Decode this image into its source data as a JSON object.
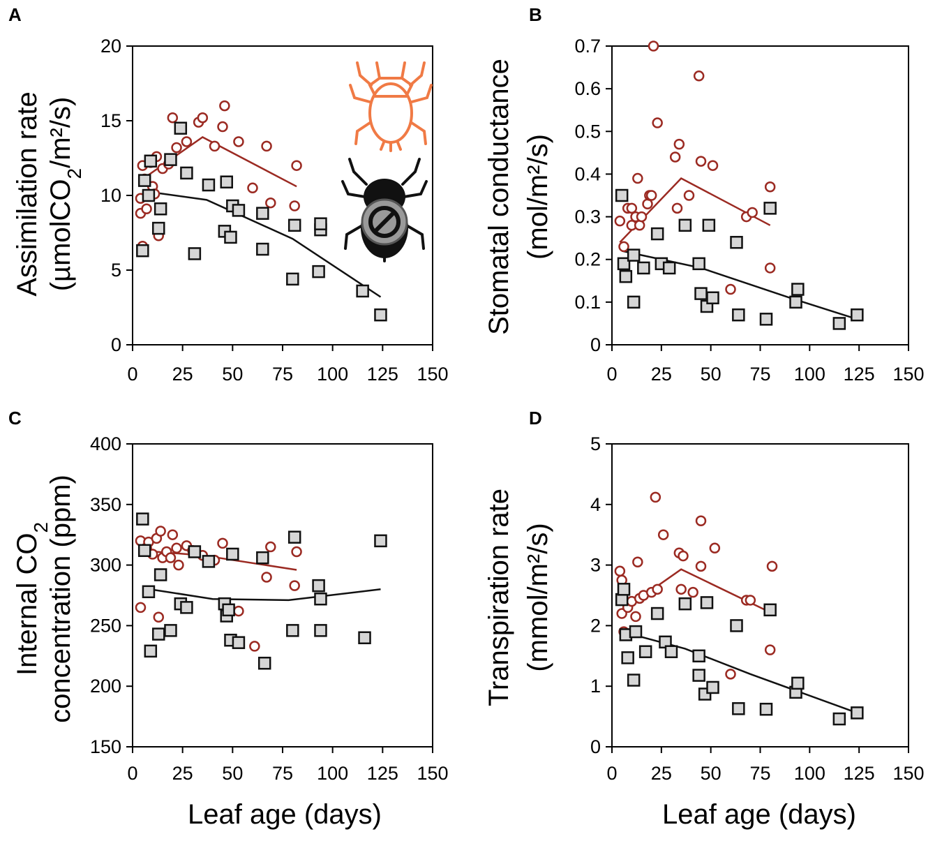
{
  "figure": {
    "x_label": "Leaf age (days)",
    "x_ticks": [
      "0",
      "25",
      "50",
      "75",
      "100",
      "125",
      "150"
    ],
    "colors": {
      "infested": "#9b2a22",
      "control": "#111111",
      "marker_fill": "#d6d6d6",
      "insect": "#f07a45"
    },
    "icons": [
      "insect-icon-infested",
      "insect-icon-no-insect"
    ]
  },
  "chart_data": [
    {
      "type": "scatter",
      "panel": "A",
      "ylabel_line1": "Assimilation rate",
      "ylabel_line2_prefix": "(µmolCO",
      "ylabel_line2_sub": "2",
      "ylabel_line2_suffix": "/m²/s)",
      "xlim": [
        0,
        150
      ],
      "ylim": [
        0,
        20
      ],
      "yticks": [
        0,
        5,
        10,
        15,
        20
      ],
      "series": [
        {
          "name": "infested",
          "marker": "circle",
          "points": [
            [
              4,
              9.8
            ],
            [
              4,
              8.8
            ],
            [
              5,
              12
            ],
            [
              5,
              6.6
            ],
            [
              6,
              11.1
            ],
            [
              7,
              9.1
            ],
            [
              9,
              12.2
            ],
            [
              10,
              10.6
            ],
            [
              11,
              10.1
            ],
            [
              12,
              12.6
            ],
            [
              13,
              7.3
            ],
            [
              15,
              11.8
            ],
            [
              18,
              12.1
            ],
            [
              20,
              15.2
            ],
            [
              22,
              13.2
            ],
            [
              27,
              13.6
            ],
            [
              33,
              14.9
            ],
            [
              35,
              15.2
            ],
            [
              41,
              13.3
            ],
            [
              45,
              14.6
            ],
            [
              46,
              16
            ],
            [
              53,
              13.6
            ],
            [
              60,
              10.5
            ],
            [
              67,
              13.3
            ],
            [
              69,
              9.5
            ],
            [
              81,
              9.3
            ],
            [
              82,
              12
            ]
          ],
          "trend": [
            [
              4,
              11
            ],
            [
              35,
              13.9
            ],
            [
              82,
              10.6
            ]
          ]
        },
        {
          "name": "control",
          "marker": "square",
          "points": [
            [
              5,
              6.3
            ],
            [
              6,
              11
            ],
            [
              8,
              10
            ],
            [
              9,
              12.3
            ],
            [
              13,
              7.8
            ],
            [
              14,
              9.1
            ],
            [
              19,
              12.4
            ],
            [
              24,
              14.5
            ],
            [
              27,
              11.5
            ],
            [
              31,
              6.1
            ],
            [
              38,
              10.7
            ],
            [
              46,
              7.6
            ],
            [
              47,
              10.9
            ],
            [
              49,
              7.2
            ],
            [
              50,
              9.3
            ],
            [
              53,
              9
            ],
            [
              65,
              6.4
            ],
            [
              65,
              8.8
            ],
            [
              80,
              4.4
            ],
            [
              81,
              8
            ],
            [
              93,
              4.9
            ],
            [
              94,
              7.7
            ],
            [
              94,
              8.1
            ],
            [
              115,
              3.6
            ],
            [
              124,
              2
            ]
          ],
          "trend": [
            [
              5,
              10.3
            ],
            [
              37,
              9.7
            ],
            [
              80,
              7.1
            ],
            [
              124,
              3.2
            ]
          ]
        }
      ]
    },
    {
      "type": "scatter",
      "panel": "B",
      "ylabel_line1": "Stomatal conductance",
      "ylabel_line2_prefix": "(mol/m²/s)",
      "ylabel_line2_sub": "",
      "ylabel_line2_suffix": "",
      "xlim": [
        0,
        150
      ],
      "ylim": [
        0,
        0.7
      ],
      "yticks": [
        0,
        0.1,
        0.2,
        0.3,
        0.4,
        0.5,
        0.6,
        0.7
      ],
      "series": [
        {
          "name": "infested",
          "marker": "circle",
          "points": [
            [
              4,
              0.29
            ],
            [
              6,
              0.23
            ],
            [
              8,
              0.32
            ],
            [
              10,
              0.28
            ],
            [
              10,
              0.32
            ],
            [
              12,
              0.3
            ],
            [
              13,
              0.39
            ],
            [
              14,
              0.28
            ],
            [
              15,
              0.3
            ],
            [
              18,
              0.33
            ],
            [
              19,
              0.35
            ],
            [
              20,
              0.35
            ],
            [
              21,
              0.7
            ],
            [
              23,
              0.52
            ],
            [
              32,
              0.44
            ],
            [
              33,
              0.32
            ],
            [
              34,
              0.47
            ],
            [
              39,
              0.35
            ],
            [
              44,
              0.63
            ],
            [
              45,
              0.43
            ],
            [
              51,
              0.42
            ],
            [
              60,
              0.13
            ],
            [
              68,
              0.3
            ],
            [
              71,
              0.31
            ],
            [
              80,
              0.37
            ],
            [
              80,
              0.18
            ]
          ],
          "trend": [
            [
              4,
              0.24
            ],
            [
              35,
              0.39
            ],
            [
              80,
              0.28
            ]
          ]
        },
        {
          "name": "control",
          "marker": "square",
          "points": [
            [
              5,
              0.35
            ],
            [
              6,
              0.19
            ],
            [
              7,
              0.16
            ],
            [
              11,
              0.1
            ],
            [
              11,
              0.21
            ],
            [
              16,
              0.18
            ],
            [
              23,
              0.26
            ],
            [
              25,
              0.19
            ],
            [
              29,
              0.18
            ],
            [
              37,
              0.28
            ],
            [
              44,
              0.19
            ],
            [
              45,
              0.12
            ],
            [
              48,
              0.09
            ],
            [
              49,
              0.28
            ],
            [
              51,
              0.11
            ],
            [
              63,
              0.24
            ],
            [
              64,
              0.07
            ],
            [
              78,
              0.06
            ],
            [
              80,
              0.32
            ],
            [
              93,
              0.1
            ],
            [
              94,
              0.13
            ],
            [
              115,
              0.05
            ],
            [
              124,
              0.07
            ]
          ],
          "trend": [
            [
              5,
              0.22
            ],
            [
              45,
              0.18
            ],
            [
              90,
              0.11
            ],
            [
              124,
              0.06
            ]
          ]
        }
      ]
    },
    {
      "type": "scatter",
      "panel": "C",
      "ylabel_line1": "concentration (ppm)",
      "ylabel_line2_prefix": "Internal CO",
      "ylabel_line2_sub": "2",
      "ylabel_line2_suffix": "",
      "xlim": [
        0,
        150
      ],
      "ylim": [
        150,
        400
      ],
      "yticks": [
        150,
        200,
        250,
        300,
        350,
        400
      ],
      "series": [
        {
          "name": "infested",
          "marker": "circle",
          "points": [
            [
              4,
              320
            ],
            [
              4,
              265
            ],
            [
              7,
              314
            ],
            [
              8,
              319
            ],
            [
              10,
              309
            ],
            [
              12,
              322
            ],
            [
              13,
              257
            ],
            [
              14,
              328
            ],
            [
              15,
              306
            ],
            [
              17,
              311
            ],
            [
              19,
              306
            ],
            [
              20,
              325
            ],
            [
              22,
              314
            ],
            [
              23,
              300
            ],
            [
              27,
              316
            ],
            [
              30,
              312
            ],
            [
              35,
              308
            ],
            [
              41,
              304
            ],
            [
              45,
              318
            ],
            [
              53,
              262
            ],
            [
              61,
              233
            ],
            [
              67,
              290
            ],
            [
              69,
              315
            ],
            [
              81,
              283
            ],
            [
              82,
              311
            ]
          ],
          "trend": [
            [
              4,
              312
            ],
            [
              35,
              308
            ],
            [
              82,
              296
            ]
          ]
        },
        {
          "name": "control",
          "marker": "square",
          "points": [
            [
              5,
              338
            ],
            [
              6,
              312
            ],
            [
              8,
              278
            ],
            [
              9,
              229
            ],
            [
              13,
              243
            ],
            [
              14,
              292
            ],
            [
              19,
              246
            ],
            [
              24,
              268
            ],
            [
              27,
              265
            ],
            [
              31,
              311
            ],
            [
              38,
              303
            ],
            [
              46,
              268
            ],
            [
              47,
              258
            ],
            [
              48,
              263
            ],
            [
              49,
              238
            ],
            [
              50,
              309
            ],
            [
              53,
              236
            ],
            [
              65,
              306
            ],
            [
              66,
              219
            ],
            [
              80,
              246
            ],
            [
              81,
              323
            ],
            [
              93,
              283
            ],
            [
              94,
              246
            ],
            [
              94,
              272
            ],
            [
              116,
              240
            ],
            [
              124,
              320
            ]
          ],
          "trend": [
            [
              5,
              281
            ],
            [
              40,
              272
            ],
            [
              78,
              271
            ],
            [
              124,
              280
            ]
          ]
        }
      ]
    },
    {
      "type": "scatter",
      "panel": "D",
      "ylabel_line1": "Transpiration rate",
      "ylabel_line2_prefix": "(mmol/m²/s)",
      "ylabel_line2_sub": "",
      "ylabel_line2_suffix": "",
      "xlim": [
        0,
        150
      ],
      "ylim": [
        0,
        5
      ],
      "yticks": [
        0,
        1,
        2,
        3,
        4,
        5
      ],
      "series": [
        {
          "name": "infested",
          "marker": "circle",
          "points": [
            [
              4,
              2.9
            ],
            [
              5,
              2.75
            ],
            [
              5,
              2.2
            ],
            [
              6,
              1.9
            ],
            [
              8,
              2.3
            ],
            [
              10,
              2.4
            ],
            [
              12,
              2.15
            ],
            [
              13,
              3.05
            ],
            [
              14,
              2.45
            ],
            [
              16,
              2.5
            ],
            [
              20,
              2.55
            ],
            [
              22,
              4.12
            ],
            [
              23,
              2.6
            ],
            [
              26,
              3.5
            ],
            [
              34,
              3.2
            ],
            [
              35,
              2.6
            ],
            [
              36,
              3.15
            ],
            [
              41,
              2.55
            ],
            [
              45,
              3.73
            ],
            [
              45,
              2.98
            ],
            [
              52,
              3.28
            ],
            [
              60,
              1.2
            ],
            [
              68,
              2.42
            ],
            [
              70,
              2.42
            ],
            [
              80,
              1.6
            ],
            [
              81,
              2.98
            ]
          ],
          "trend": [
            [
              4,
              2.22
            ],
            [
              35,
              2.93
            ],
            [
              80,
              2.22
            ]
          ]
        },
        {
          "name": "control",
          "marker": "square",
          "points": [
            [
              5,
              2.43
            ],
            [
              6,
              2.6
            ],
            [
              7,
              1.85
            ],
            [
              8,
              1.47
            ],
            [
              11,
              1.1
            ],
            [
              12,
              1.9
            ],
            [
              17,
              1.57
            ],
            [
              23,
              2.2
            ],
            [
              27,
              1.73
            ],
            [
              30,
              1.57
            ],
            [
              37,
              2.36
            ],
            [
              44,
              1.5
            ],
            [
              44,
              1.18
            ],
            [
              47,
              0.87
            ],
            [
              48,
              2.38
            ],
            [
              51,
              0.98
            ],
            [
              63,
              2.0
            ],
            [
              64,
              0.63
            ],
            [
              78,
              0.62
            ],
            [
              80,
              2.26
            ],
            [
              93,
              0.9
            ],
            [
              94,
              1.05
            ],
            [
              115,
              0.46
            ],
            [
              124,
              0.56
            ]
          ],
          "trend": [
            [
              5,
              1.9
            ],
            [
              37,
              1.62
            ],
            [
              70,
              1.2
            ],
            [
              124,
              0.56
            ]
          ]
        }
      ]
    }
  ]
}
